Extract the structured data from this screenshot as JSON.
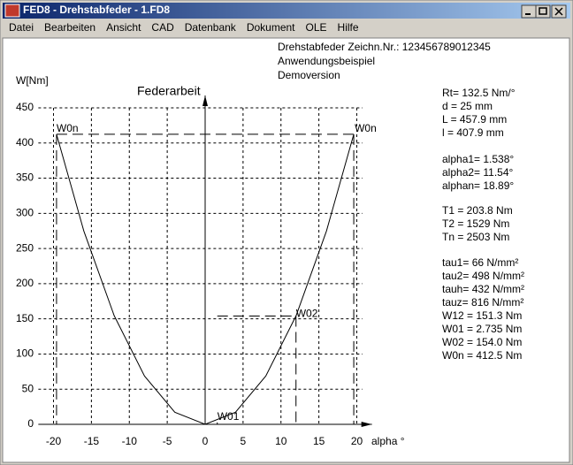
{
  "window": {
    "title": "FED8 - Drehstabfeder  -  1.FD8"
  },
  "menu": [
    "Datei",
    "Bearbeiten",
    "Ansicht",
    "CAD",
    "Datenbank",
    "Dokument",
    "OLE",
    "Hilfe"
  ],
  "header": [
    "Drehstabfeder  Zeichn.Nr.: 123456789012345",
    "Anwendungsbeispiel",
    "Demoversion"
  ],
  "parameters": [
    [
      "Rt= 132.5 Nm/°",
      "d  = 25 mm",
      "L  = 457.9 mm",
      "l   = 407.9 mm"
    ],
    [
      "alpha1= 1.538°",
      "alpha2= 11.54°",
      "alphan= 18.89°"
    ],
    [
      "T1 = 203.8 Nm",
      "T2 = 1529 Nm",
      "Tn = 2503 Nm"
    ],
    [
      "tau1=   66 N/mm²",
      "tau2=  498 N/mm²",
      "tauh=  432 N/mm²",
      "tauz=  816 N/mm²",
      "W12 = 151.3 Nm",
      "W01 = 2.735 Nm",
      "W02 = 154.0 Nm",
      "W0n = 412.5 Nm"
    ]
  ],
  "chart_data": {
    "type": "line",
    "title": "Federarbeit",
    "y_label": "W[Nm]",
    "x_label": "alpha °",
    "x": [
      -19.6,
      -16,
      -12,
      -8,
      -4,
      0,
      4,
      8,
      12,
      16,
      19.6
    ],
    "series": [
      {
        "color": "#000000",
        "values": [
          412.5,
          274.9,
          154.6,
          68.7,
          17.2,
          0,
          17.2,
          68.7,
          154.6,
          274.9,
          412.5
        ]
      }
    ],
    "markers": [
      {
        "label": "W0n",
        "x": -19.6,
        "y": 412.5
      },
      {
        "label": "W0n",
        "x": 19.6,
        "y": 412.5
      },
      {
        "label": "W02",
        "x": 11.98,
        "y": 154.0
      },
      {
        "label": "W01",
        "x": 1.6,
        "y": 2.735
      }
    ],
    "xlim": [
      -22,
      22
    ],
    "ylim": [
      0,
      450
    ],
    "xticks": [
      -20,
      -15,
      -10,
      -5,
      0,
      5,
      10,
      15,
      20
    ],
    "yticks": [
      0,
      50,
      100,
      150,
      200,
      250,
      300,
      350,
      400,
      450
    ],
    "grid": true
  }
}
